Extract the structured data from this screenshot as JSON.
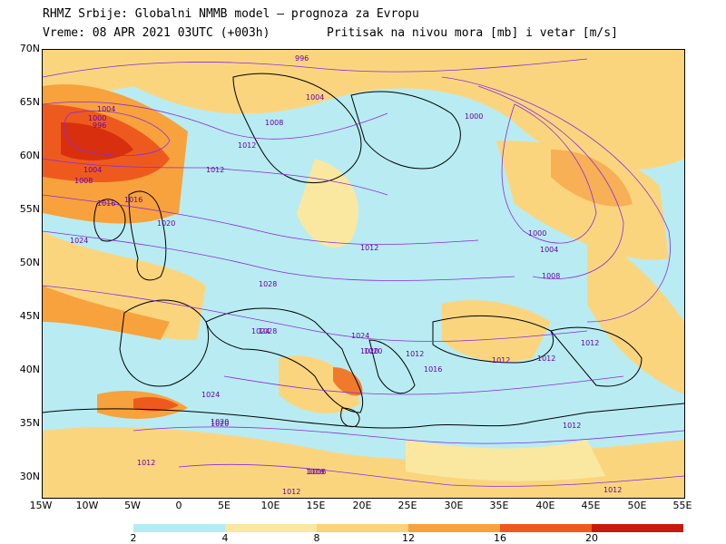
{
  "header": {
    "line1": "RHMZ Srbije: Globalni NMMB model — prognoza za Evropu",
    "line2": "Vreme: 08 APR 2021 03UTC (+003h)",
    "line3": "Pritisak na nivou mora [mb] i vetar [m/s]"
  },
  "axes": {
    "lat_labels": [
      "70N",
      "65N",
      "60N",
      "55N",
      "50N",
      "45N",
      "40N",
      "35N",
      "30N"
    ],
    "lon_labels": [
      "15W",
      "10W",
      "5W",
      "0",
      "5E",
      "10E",
      "15E",
      "20E",
      "25E",
      "30E",
      "35E",
      "40E",
      "45E",
      "50E",
      "55E"
    ]
  },
  "legend": {
    "ticks": [
      "2",
      "4",
      "8",
      "12",
      "16",
      "20"
    ],
    "colors": [
      "#b4ecf4",
      "#fae8a0",
      "#fcd37a",
      "#f7a23c",
      "#ee5a1e",
      "#c81a0c"
    ]
  },
  "isobars": {
    "labels": [
      "996",
      "1000",
      "1004",
      "1004",
      "1008",
      "1012",
      "1016",
      "1020",
      "1024",
      "1028",
      "1000",
      "1004",
      "1008",
      "1012",
      "1016",
      "1020",
      "1024",
      "1028",
      "996",
      "1000",
      "1004",
      "1008",
      "1012",
      "1012",
      "1016",
      "1020",
      "1024",
      "1012",
      "1012",
      "1012",
      "1012",
      "1016",
      "1020",
      "1024",
      "1012",
      "1016",
      "1020",
      "1012",
      "1012"
    ]
  }
}
